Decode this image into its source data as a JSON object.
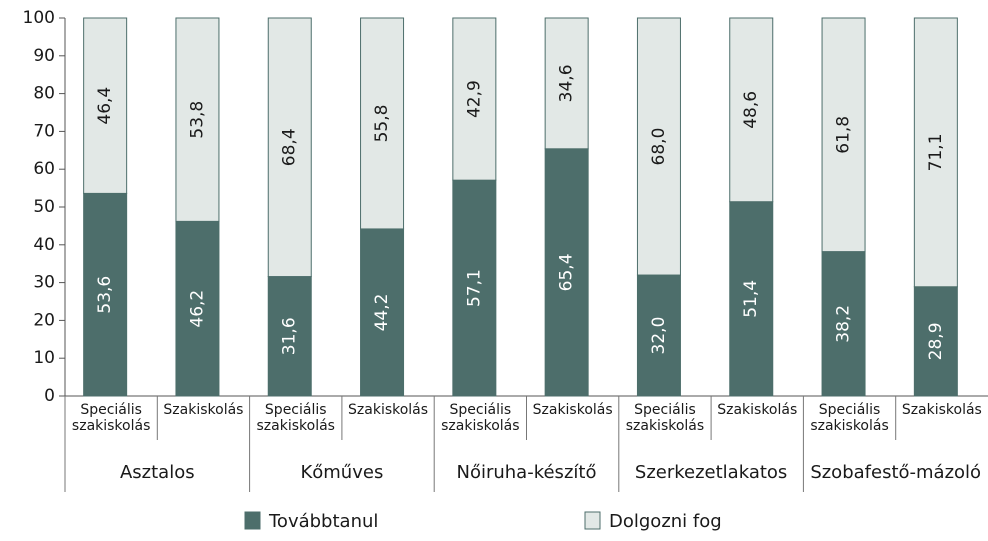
{
  "chart_data": {
    "type": "stacked_bar",
    "categories": [
      "Speciális szakiskolás",
      "Szakiskolás",
      "Speciális szakiskolás",
      "Szakiskolás",
      "Speciális szakiskolás",
      "Szakiskolás",
      "Speciális szakiskolás",
      "Szakiskolás",
      "Speciális szakiskolás",
      "Szakiskolás"
    ],
    "groups": [
      "Asztalos",
      "Kőműves",
      "Nőiruha-készítő",
      "Szerkezetlakatos",
      "Szobafestő-mázoló"
    ],
    "series": [
      {
        "name": "Továbbtanul",
        "color": "#4d6e6b",
        "values": [
          53.6,
          46.2,
          31.6,
          44.2,
          57.1,
          65.4,
          32.0,
          51.4,
          38.2,
          28.9
        ],
        "value_labels": [
          "53,6",
          "46,2",
          "31,6",
          "44,2",
          "57,1",
          "65,4",
          "32,0",
          "51,4",
          "38,2",
          "28,9"
        ]
      },
      {
        "name": "Dolgozni fog",
        "color": "#e2e8e6",
        "values": [
          46.4,
          53.8,
          68.4,
          55.8,
          42.9,
          34.6,
          68.0,
          48.6,
          61.8,
          71.1
        ],
        "value_labels": [
          "46,4",
          "53,8",
          "68,4",
          "55,8",
          "42,9",
          "34,6",
          "68,0",
          "48,6",
          "61,8",
          "71,1"
        ]
      }
    ],
    "ylim": [
      0,
      100
    ],
    "yticks": [
      0,
      10,
      20,
      30,
      40,
      50,
      60,
      70,
      80,
      90,
      100
    ],
    "grid": false
  }
}
